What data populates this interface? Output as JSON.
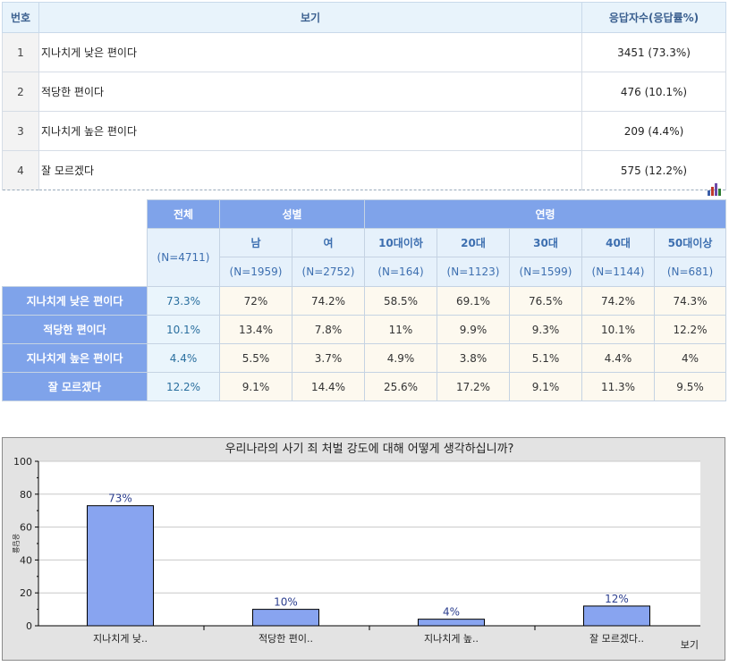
{
  "answer_table": {
    "headers": [
      "번호",
      "보기",
      "응답자수(응답률%)"
    ],
    "rows": [
      {
        "no": "1",
        "text": "지나치게 낮은 편이다",
        "count": "3451 (73.3%)"
      },
      {
        "no": "2",
        "text": "적당한 편이다",
        "count": "476 (10.1%)"
      },
      {
        "no": "3",
        "text": "지나치게 높은 편이다",
        "count": "209 (4.4%)"
      },
      {
        "no": "4",
        "text": "잘 모르겠다",
        "count": "575 (12.2%)"
      }
    ]
  },
  "chart_icon": "bar-chart-icon",
  "cross_table": {
    "total_label": "전체",
    "total_n": "(N=4711)",
    "gender_label": "성별",
    "age_label": "연령",
    "groups": [
      {
        "label": "남",
        "n": "(N=1959)"
      },
      {
        "label": "여",
        "n": "(N=2752)"
      },
      {
        "label": "10대이하",
        "n": "(N=164)"
      },
      {
        "label": "20대",
        "n": "(N=1123)"
      },
      {
        "label": "30대",
        "n": "(N=1599)"
      },
      {
        "label": "40대",
        "n": "(N=1144)"
      },
      {
        "label": "50대이상",
        "n": "(N=681)"
      }
    ],
    "rows": [
      {
        "label": "지나치게 낮은 편이다",
        "total": "73.3%",
        "values": [
          "72%",
          "74.2%",
          "58.5%",
          "69.1%",
          "76.5%",
          "74.2%",
          "74.3%"
        ]
      },
      {
        "label": "적당한 편이다",
        "total": "10.1%",
        "values": [
          "13.4%",
          "7.8%",
          "11%",
          "9.9%",
          "9.3%",
          "10.1%",
          "12.2%"
        ]
      },
      {
        "label": "지나치게 높은 편이다",
        "total": "4.4%",
        "values": [
          "5.5%",
          "3.7%",
          "4.9%",
          "3.8%",
          "5.1%",
          "4.4%",
          "4%"
        ]
      },
      {
        "label": "잘 모르겠다",
        "total": "12.2%",
        "values": [
          "9.1%",
          "14.4%",
          "25.6%",
          "17.2%",
          "9.1%",
          "11.3%",
          "9.5%"
        ]
      }
    ]
  },
  "colors": {
    "header_blue": "#7fa3ea",
    "bar_fill": "#88a4f0",
    "bar_stroke": "#000000",
    "chart_bg": "#e3e3e3"
  },
  "chart_data": {
    "type": "bar",
    "title": "우리나라의 사기 죄 처벌 강도에 대해 어떻게 생각하십니까?",
    "categories": [
      "지나치게 낮..",
      "적당한 편이..",
      "지나치게 높..",
      "잘 모르겠다.."
    ],
    "values": [
      73,
      10,
      4,
      12
    ],
    "value_labels": [
      "73%",
      "10%",
      "4%",
      "12%"
    ],
    "ylabel": "응답율",
    "xlabel": "보기",
    "ylim": [
      0,
      100
    ],
    "yticks": [
      "0",
      "20",
      "40",
      "60",
      "80",
      "100"
    ],
    "grid": true
  }
}
